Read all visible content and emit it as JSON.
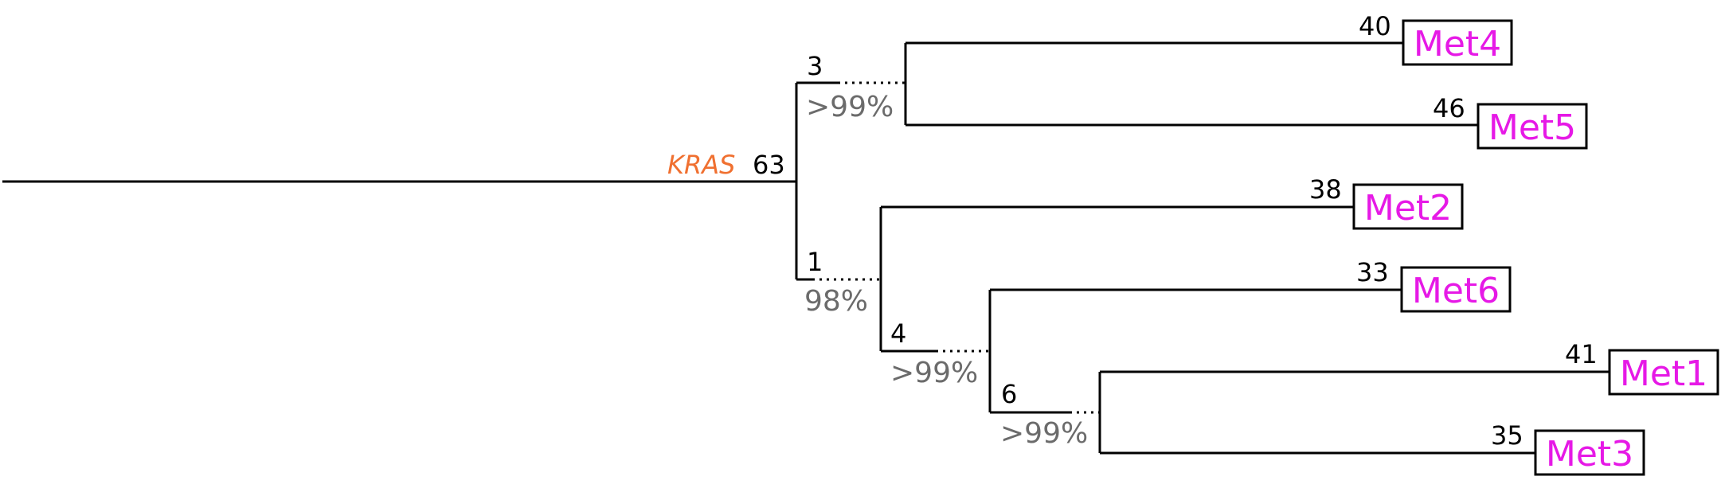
{
  "colors": {
    "branch": "#000000",
    "leaf_label": "#e619e6",
    "gene_label": "#f07030",
    "support_label": "#6b6b6b"
  },
  "root": {
    "gene": "KRAS",
    "count": "63"
  },
  "clades": {
    "met4_met5": {
      "count": "3",
      "support": ">99%"
    },
    "rest": {
      "count": "1",
      "support": "98%"
    },
    "met6_met1_met3": {
      "count": "4",
      "support": ">99%"
    },
    "met1_met3": {
      "count": "6",
      "support": ">99%"
    }
  },
  "leaves": {
    "met4": {
      "label": "Met4",
      "count": "40"
    },
    "met5": {
      "label": "Met5",
      "count": "46"
    },
    "met2": {
      "label": "Met2",
      "count": "38"
    },
    "met6": {
      "label": "Met6",
      "count": "33"
    },
    "met1": {
      "label": "Met1",
      "count": "41"
    },
    "met3": {
      "label": "Met3",
      "count": "35"
    }
  }
}
